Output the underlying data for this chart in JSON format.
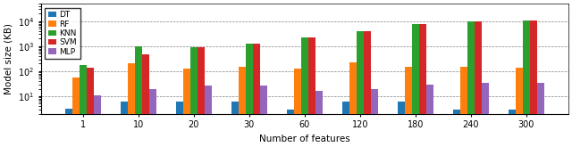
{
  "categories": [
    1,
    10,
    20,
    30,
    60,
    120,
    180,
    240,
    300
  ],
  "models": [
    "DT",
    "RF",
    "KNN",
    "SVM",
    "MLP"
  ],
  "colors": [
    "#1f77b4",
    "#ff7f0e",
    "#2ca02c",
    "#d62728",
    "#9467bd"
  ],
  "values": {
    "DT": [
      3.2,
      6.0,
      6.0,
      6.0,
      3.0,
      6.0,
      6.0,
      3.0,
      3.0
    ],
    "RF": [
      58,
      215,
      125,
      155,
      125,
      220,
      155,
      155,
      140
    ],
    "KNN": [
      170,
      950,
      900,
      1250,
      2200,
      4100,
      7500,
      10000,
      11000
    ],
    "SVM": [
      140,
      480,
      920,
      1250,
      2200,
      4100,
      7800,
      10000,
      11000
    ],
    "MLP": [
      11,
      20,
      27,
      27,
      17,
      19,
      30,
      33,
      33
    ]
  },
  "ylabel": "Model size (KB)",
  "xlabel": "Number of features",
  "ylim": [
    2,
    50000
  ],
  "yticks": [
    10,
    100,
    1000,
    10000
  ],
  "ytick_labels": [
    "$10^1$",
    "$10^2$",
    "$10^3$",
    "$10^4$"
  ],
  "figsize": [
    6.4,
    1.65
  ],
  "dpi": 100,
  "bar_width": 0.13,
  "legend_fontsize": 6.5,
  "axis_fontsize": 7.5,
  "tick_fontsize": 7
}
